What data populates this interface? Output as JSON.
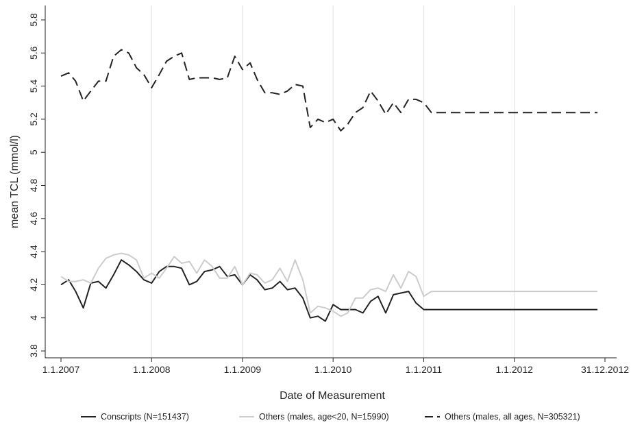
{
  "chart_data": {
    "type": "line",
    "xlabel": "Date of Measurement",
    "ylabel": "mean TCL (mmol/l)",
    "x_range": [
      "2007-01-01",
      "2012-12-31"
    ],
    "ylim": [
      3.8,
      5.8
    ],
    "x_ticks": [
      {
        "date": "2007-01-01",
        "label": "1.1.2007"
      },
      {
        "date": "2008-01-01",
        "label": "1.1.2008"
      },
      {
        "date": "2009-01-01",
        "label": "1.1.2009"
      },
      {
        "date": "2010-01-01",
        "label": "1.1.2010"
      },
      {
        "date": "2011-01-01",
        "label": "1.1.2011"
      },
      {
        "date": "2012-01-01",
        "label": "1.1.2012"
      },
      {
        "date": "2012-12-31",
        "label": "31.12.2012"
      }
    ],
    "y_ticks": [
      "3.8",
      "4",
      "4.2",
      "4.4",
      "4.6",
      "4.8",
      "5",
      "5.2",
      "5.4",
      "5.6",
      "5.8"
    ],
    "grid": "vertical lines at year starts",
    "legend_position": "bottom",
    "x": [
      "2007-01",
      "2007-02",
      "2007-03",
      "2007-04",
      "2007-05",
      "2007-06",
      "2007-07",
      "2007-08",
      "2007-09",
      "2007-10",
      "2007-11",
      "2007-12",
      "2008-01",
      "2008-02",
      "2008-03",
      "2008-04",
      "2008-05",
      "2008-06",
      "2008-07",
      "2008-08",
      "2008-09",
      "2008-10",
      "2008-11",
      "2008-12",
      "2009-01",
      "2009-02",
      "2009-03",
      "2009-04",
      "2009-05",
      "2009-06",
      "2009-07",
      "2009-08",
      "2009-09",
      "2009-10",
      "2009-11",
      "2009-12",
      "2010-01",
      "2010-02",
      "2010-03",
      "2010-04",
      "2010-05",
      "2010-06",
      "2010-07",
      "2010-08",
      "2010-09",
      "2010-10",
      "2010-11",
      "2010-12",
      "2011-01",
      "2011-02",
      "2011-03",
      "2011-04",
      "2011-05",
      "2011-06",
      "2011-07",
      "2011-08",
      "2011-09",
      "2011-10",
      "2011-11",
      "2011-12",
      "2012-01",
      "2012-02",
      "2012-03",
      "2012-04",
      "2012-05",
      "2012-06",
      "2012-07",
      "2012-08",
      "2012-09",
      "2012-10",
      "2012-11",
      "2012-12"
    ],
    "series": [
      {
        "name": "Conscripts (N=151437)",
        "color": "#222222",
        "style": "solid",
        "values": [
          4.2,
          4.23,
          4.16,
          4.06,
          4.21,
          4.22,
          4.18,
          4.26,
          4.35,
          4.32,
          4.28,
          4.23,
          4.21,
          4.28,
          4.31,
          4.31,
          4.3,
          4.2,
          4.22,
          4.28,
          4.29,
          4.31,
          4.25,
          4.26,
          4.2,
          4.26,
          4.23,
          4.17,
          4.18,
          4.22,
          4.17,
          4.18,
          4.12,
          4.0,
          4.01,
          3.98,
          4.08,
          4.05,
          4.05,
          4.05,
          4.03,
          4.1,
          4.13,
          4.03,
          4.14,
          4.15,
          4.16,
          4.09,
          4.05,
          4.05,
          4.05,
          4.05,
          4.05,
          4.05,
          4.05,
          4.05,
          4.05,
          4.05,
          4.05,
          4.05,
          4.05,
          4.05,
          4.05,
          4.05,
          4.05,
          4.05,
          4.05,
          4.05,
          4.05,
          4.05,
          4.05,
          4.05
        ]
      },
      {
        "name": "Others (males, age<20, N=15990)",
        "color": "#cccccc",
        "style": "solid",
        "values": [
          4.25,
          4.22,
          4.22,
          4.23,
          4.21,
          4.3,
          4.36,
          4.38,
          4.39,
          4.38,
          4.35,
          4.24,
          4.27,
          4.24,
          4.3,
          4.37,
          4.33,
          4.34,
          4.27,
          4.35,
          4.31,
          4.24,
          4.24,
          4.31,
          4.2,
          4.27,
          4.26,
          4.21,
          4.23,
          4.3,
          4.22,
          4.35,
          4.23,
          4.03,
          4.07,
          4.06,
          4.04,
          4.01,
          4.03,
          4.12,
          4.12,
          4.17,
          4.18,
          4.16,
          4.26,
          4.18,
          4.28,
          4.25,
          4.13,
          4.16,
          4.16,
          4.16,
          4.16,
          4.16,
          4.16,
          4.16,
          4.16,
          4.16,
          4.16,
          4.16,
          4.16,
          4.16,
          4.16,
          4.16,
          4.16,
          4.16,
          4.16,
          4.16,
          4.16,
          4.16,
          4.16,
          4.16
        ]
      },
      {
        "name": "Others (males, all ages, N=305321)",
        "color": "#222222",
        "style": "dashed",
        "values": [
          5.46,
          5.48,
          5.43,
          5.31,
          5.37,
          5.43,
          5.43,
          5.58,
          5.62,
          5.6,
          5.51,
          5.47,
          5.39,
          5.47,
          5.55,
          5.58,
          5.6,
          5.44,
          5.45,
          5.45,
          5.45,
          5.44,
          5.45,
          5.58,
          5.5,
          5.54,
          5.44,
          5.36,
          5.36,
          5.35,
          5.37,
          5.41,
          5.4,
          5.15,
          5.2,
          5.18,
          5.2,
          5.13,
          5.17,
          5.24,
          5.27,
          5.37,
          5.31,
          5.23,
          5.3,
          5.24,
          5.32,
          5.32,
          5.3,
          5.24,
          5.24,
          5.24,
          5.24,
          5.24,
          5.24,
          5.24,
          5.24,
          5.24,
          5.24,
          5.24,
          5.24,
          5.24,
          5.24,
          5.24,
          5.24,
          5.24,
          5.24,
          5.24,
          5.24,
          5.24,
          5.24,
          5.24
        ]
      }
    ]
  }
}
